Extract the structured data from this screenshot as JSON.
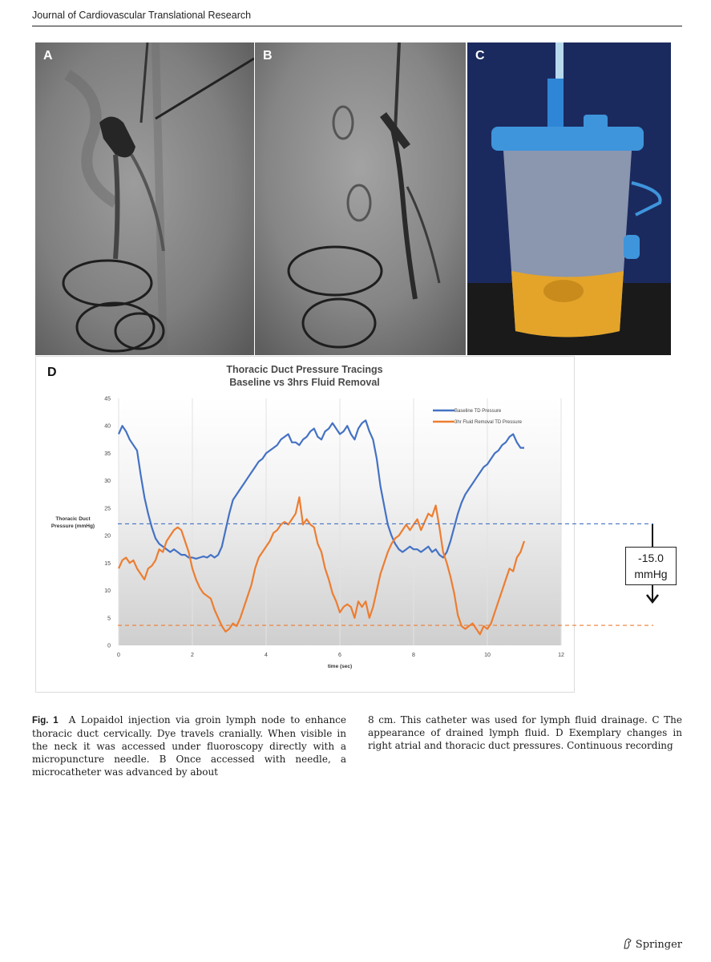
{
  "header": {
    "journal": "Journal of Cardiovascular Translational Research"
  },
  "panels": {
    "a_label": "A",
    "b_label": "B",
    "c_label": "C",
    "d_label": "D"
  },
  "chart_data": {
    "type": "line",
    "title_line1": "Thoracic Duct Pressure Tracings",
    "title_line2": "Baseline vs 3hrs Fluid Removal",
    "xlabel": "time (sec)",
    "ylabel_line1": "Thoracic Duct",
    "ylabel_line2": "Pressure (mmHg)",
    "xlim": [
      0,
      12
    ],
    "ylim": [
      0,
      45
    ],
    "xticks": [
      0,
      2,
      4,
      6,
      8,
      10,
      12
    ],
    "yticks": [
      0,
      5,
      10,
      15,
      20,
      25,
      30,
      35,
      40,
      45
    ],
    "legend_position": "top-right",
    "series": [
      {
        "name": "Baseline TD Pressure",
        "color": "#4472c4",
        "x": [
          0,
          0.1,
          0.2,
          0.3,
          0.4,
          0.5,
          0.6,
          0.7,
          0.8,
          0.9,
          1.0,
          1.1,
          1.2,
          1.3,
          1.4,
          1.5,
          1.6,
          1.7,
          1.8,
          1.9,
          2.0,
          2.1,
          2.2,
          2.3,
          2.4,
          2.5,
          2.6,
          2.7,
          2.8,
          2.9,
          3.0,
          3.1,
          3.2,
          3.3,
          3.4,
          3.5,
          3.6,
          3.7,
          3.8,
          3.9,
          4.0,
          4.1,
          4.2,
          4.3,
          4.4,
          4.5,
          4.6,
          4.7,
          4.8,
          4.9,
          5.0,
          5.1,
          5.2,
          5.3,
          5.4,
          5.5,
          5.6,
          5.7,
          5.8,
          5.9,
          6.0,
          6.1,
          6.2,
          6.3,
          6.4,
          6.5,
          6.6,
          6.7,
          6.8,
          6.9,
          7.0,
          7.1,
          7.2,
          7.3,
          7.4,
          7.5,
          7.6,
          7.7,
          7.8,
          7.9,
          8.0,
          8.1,
          8.2,
          8.3,
          8.4,
          8.5,
          8.6,
          8.7,
          8.8,
          8.9,
          9.0,
          9.1,
          9.2,
          9.3,
          9.4,
          9.5,
          9.6,
          9.7,
          9.8,
          9.9,
          10.0,
          10.1,
          10.2,
          10.3,
          10.4,
          10.5,
          10.6,
          10.7,
          10.8,
          10.9,
          11.0
        ],
        "values": [
          38.5,
          40,
          39,
          37.5,
          36.5,
          35.5,
          31,
          27,
          24,
          21.5,
          19.5,
          18.5,
          18,
          17.5,
          17,
          17.5,
          17,
          16.5,
          16.5,
          16,
          16,
          15.8,
          16,
          16.2,
          16,
          16.5,
          16,
          16.5,
          18,
          21,
          24,
          26.5,
          27.5,
          28.5,
          29.5,
          30.5,
          31.5,
          32.5,
          33.5,
          34,
          35,
          35.5,
          36,
          36.5,
          37.5,
          38,
          38.5,
          37,
          37,
          36.5,
          37.5,
          38,
          39,
          39.5,
          38,
          37.5,
          39,
          39.5,
          40.5,
          39.5,
          38.5,
          39,
          40,
          38.5,
          37.5,
          39.5,
          40.5,
          41,
          39,
          37.5,
          34,
          29,
          25.5,
          22,
          20,
          18.5,
          17.5,
          17,
          17.5,
          18,
          17.5,
          17.5,
          17,
          17.5,
          18,
          17,
          17.5,
          16.5,
          16,
          17,
          19,
          21.5,
          24,
          26,
          27.5,
          28.5,
          29.5,
          30.5,
          31.5,
          32.5,
          33,
          34,
          35,
          35.5,
          36.5,
          37,
          38,
          38.5,
          37,
          36,
          36
        ]
      },
      {
        "name": "3hr Fluid Removal TD Pressure",
        "color": "#ed7d31",
        "x": [
          0,
          0.1,
          0.2,
          0.3,
          0.4,
          0.5,
          0.6,
          0.7,
          0.8,
          0.9,
          1.0,
          1.1,
          1.2,
          1.3,
          1.4,
          1.5,
          1.6,
          1.7,
          1.8,
          1.9,
          2.0,
          2.1,
          2.2,
          2.3,
          2.4,
          2.5,
          2.6,
          2.7,
          2.8,
          2.9,
          3.0,
          3.1,
          3.2,
          3.3,
          3.4,
          3.5,
          3.6,
          3.7,
          3.8,
          3.9,
          4.0,
          4.1,
          4.2,
          4.3,
          4.4,
          4.5,
          4.6,
          4.7,
          4.8,
          4.9,
          5.0,
          5.1,
          5.2,
          5.3,
          5.4,
          5.5,
          5.6,
          5.7,
          5.8,
          5.9,
          6.0,
          6.1,
          6.2,
          6.3,
          6.4,
          6.5,
          6.6,
          6.7,
          6.8,
          6.9,
          7.0,
          7.1,
          7.2,
          7.3,
          7.4,
          7.5,
          7.6,
          7.7,
          7.8,
          7.9,
          8.0,
          8.1,
          8.2,
          8.3,
          8.4,
          8.5,
          8.6,
          8.7,
          8.8,
          8.9,
          9.0,
          9.1,
          9.2,
          9.3,
          9.4,
          9.5,
          9.6,
          9.7,
          9.8,
          9.9,
          10.0,
          10.1,
          10.2,
          10.3,
          10.4,
          10.5,
          10.6,
          10.7,
          10.8,
          10.9,
          11.0
        ],
        "values": [
          14,
          15.5,
          16,
          15,
          15.5,
          14,
          13,
          12,
          14,
          14.5,
          15.5,
          17.5,
          17,
          19,
          20,
          21,
          21.5,
          21,
          19,
          17,
          14,
          12,
          10.5,
          9.5,
          9,
          8.5,
          6.5,
          5,
          3.5,
          2.5,
          3,
          4,
          3.5,
          5,
          7,
          9,
          11,
          14,
          16,
          17,
          18,
          19,
          20.5,
          21,
          22,
          22.5,
          22,
          23,
          24,
          27,
          22,
          23,
          22,
          21.5,
          18.5,
          17,
          14,
          12,
          9.5,
          8,
          6,
          7,
          7.5,
          7,
          5,
          8,
          7,
          8,
          5,
          7,
          10,
          13,
          15,
          17,
          18.5,
          19.5,
          20,
          21,
          22,
          21,
          22,
          23,
          21,
          22.5,
          24,
          23.5,
          25.5,
          21.5,
          17,
          15,
          12.5,
          9.5,
          5.5,
          3.5,
          3,
          3.5,
          4,
          3,
          2,
          3.5,
          3,
          4,
          6,
          8,
          10,
          12,
          14,
          13.5,
          16,
          17,
          19
        ]
      }
    ],
    "reference_lines": [
      {
        "y": 22,
        "color": "#4472c4",
        "style": "dashed"
      },
      {
        "y": 3.5,
        "color": "#ed7d31",
        "style": "dashed"
      }
    ],
    "annotation": {
      "line1": "-15.0",
      "line2": "mmHg"
    }
  },
  "caption": {
    "fig_label": "Fig. 1",
    "col1_text": "A Lopaidol injection via groin lymph node to enhance thoracic duct cervically. Dye travels cranially. When visible in the neck it was accessed under fluoroscopy directly with a micropuncture needle. B Once accessed with needle, a microcatheter was advanced by about",
    "col2_text": "8 cm. This catheter was used for lymph fluid drainage. C The appearance of drained lymph fluid. D Exemplary changes in right atrial and thoracic duct pressures. Continuous recording"
  },
  "footer": {
    "publisher": "Springer",
    "icon": "springer-horse-icon"
  }
}
